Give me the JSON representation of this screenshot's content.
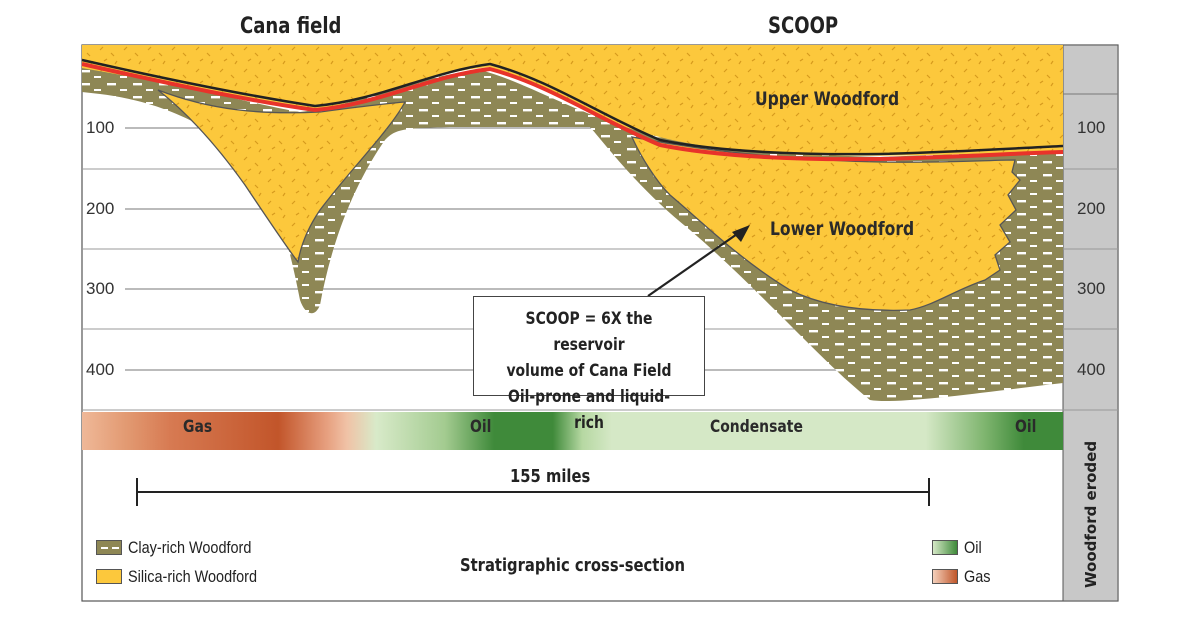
{
  "titles": {
    "left": "Cana field",
    "right": "SCOOP"
  },
  "depth_labels": [
    "100",
    "200",
    "300",
    "400"
  ],
  "layers": {
    "upper": "Upper Woodford",
    "lower": "Lower Woodford"
  },
  "callout": [
    "SCOOP = 6X the reservoir",
    "volume of Cana Field",
    "Oil-prone and liquid-rich"
  ],
  "zones": {
    "gas": "Gas",
    "oil1": "Oil",
    "condensate": "Condensate",
    "oil2": "Oil"
  },
  "scale_label": "155 miles",
  "legend": {
    "clay": "Clay-rich Woodford",
    "silica": "Silica-rich Woodford",
    "oil": "Oil",
    "gas": "Gas"
  },
  "section_title": "Stratigraphic cross-section",
  "eroded_label": "Woodford eroded",
  "colors": {
    "silica": "#fcc83c",
    "clay": "#8e8755",
    "red_line": "#e8332a",
    "oil_dark": "#3f8a3a",
    "oil_light": "#d5e8c6",
    "gas_dark": "#c0562a",
    "gas_light": "#efb898",
    "eroded": "#c8c8c8"
  }
}
